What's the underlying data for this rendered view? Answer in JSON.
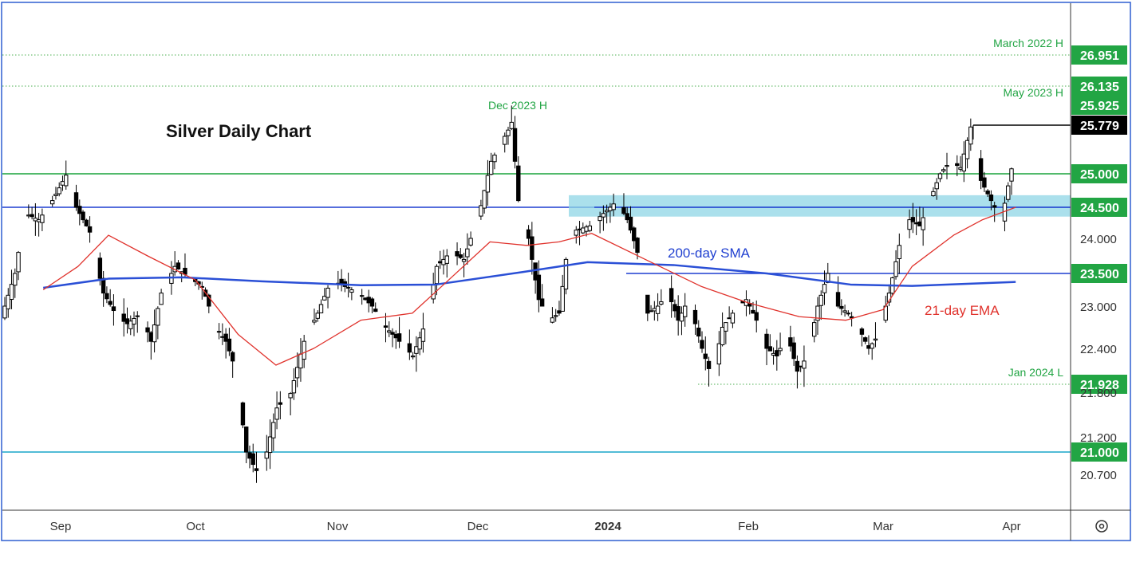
{
  "chart_data": {
    "type": "candlestick",
    "title": "Silver Daily Chart",
    "y_axis_ticks": [
      "26.951",
      "26.135",
      "25.925",
      "25.779",
      "25.000",
      "24.500",
      "24.000",
      "23.500",
      "23.000",
      "22.400",
      "21.928",
      "21.800",
      "21.200",
      "21.000",
      "20.700"
    ],
    "x_axis_ticks": [
      {
        "label": "Sep",
        "x": "2023-09-01"
      },
      {
        "label": "Oct",
        "x": "2023-10-02"
      },
      {
        "label": "Nov",
        "x": "2023-11-01"
      },
      {
        "label": "Dec",
        "x": "2023-12-01"
      },
      {
        "label": "2024",
        "x": "2024-01-02"
      },
      {
        "label": "Feb",
        "x": "2024-02-01"
      },
      {
        "label": "Mar",
        "x": "2024-03-01"
      },
      {
        "label": "Apr",
        "x": "2024-04-01"
      }
    ],
    "horizontal_levels": [
      {
        "price": 26.951,
        "label": "26.951",
        "box_color": "#22a544",
        "style": "dotted",
        "line_color": "#4caf50"
      },
      {
        "price": 26.135,
        "label": "26.135",
        "box_color": "#22a544",
        "style": "dotted",
        "line_color": "#4caf50"
      },
      {
        "price": 25.925,
        "label": "25.925",
        "box_color": "#22a544",
        "style": "none",
        "line_color": "#4caf50"
      },
      {
        "price": 25.779,
        "label": "25.779",
        "box_color": "#000000",
        "style": "solid-partial",
        "line_color": "#000000"
      },
      {
        "price": 25.0,
        "label": "25.000",
        "box_color": "#22a544",
        "style": "solid",
        "line_color": "#1aa33b"
      },
      {
        "price": 24.5,
        "label": "24.500",
        "box_color": "#22a544",
        "style": "solid",
        "line_color": "#1f3fd0"
      },
      {
        "price": 23.5,
        "label": "23.500",
        "box_color": "#22a544",
        "style": "solid-partial",
        "line_color": "#1f3fd0"
      },
      {
        "price": 21.928,
        "label": "21.928",
        "box_color": "#22a544",
        "style": "dotted-partial",
        "line_color": "#4caf50"
      },
      {
        "price": 21.0,
        "label": "21.000",
        "box_color": "#22a544",
        "style": "solid",
        "line_color": "#1aa5c8"
      }
    ],
    "support_zone": {
      "low": 24.35,
      "high": 24.68,
      "color": "#8fd6e6"
    },
    "annotations": [
      {
        "text": "March 2022 H",
        "color": "#22a544"
      },
      {
        "text": "May 2023 H",
        "color": "#22a544"
      },
      {
        "text": "Dec 2023 H",
        "color": "#22a544"
      },
      {
        "text": "Jan 2024 L",
        "color": "#22a544"
      },
      {
        "text": "200-day SMA",
        "color": "#1f3fd0"
      },
      {
        "text": "21-day EMA",
        "color": "#e0322c"
      }
    ],
    "candles_summary": {
      "start_close": 23.0,
      "sep_high": 24.98,
      "oct_low": 20.69,
      "dec_high": 25.92,
      "jan_low": 21.93,
      "last_close": 25.08
    },
    "sma_200": [
      {
        "x": "2023-08-28",
        "y": 23.28
      },
      {
        "x": "2023-09-12",
        "y": 23.42
      },
      {
        "x": "2023-09-29",
        "y": 23.44
      },
      {
        "x": "2023-10-16",
        "y": 23.38
      },
      {
        "x": "2023-11-06",
        "y": 23.32
      },
      {
        "x": "2023-11-22",
        "y": 23.33
      },
      {
        "x": "2023-12-12",
        "y": 23.52
      },
      {
        "x": "2023-12-28",
        "y": 23.66
      },
      {
        "x": "2024-01-16",
        "y": 23.62
      },
      {
        "x": "2024-02-05",
        "y": 23.5
      },
      {
        "x": "2024-02-23",
        "y": 23.33
      },
      {
        "x": "2024-03-08",
        "y": 23.31
      },
      {
        "x": "2024-04-02",
        "y": 23.37
      }
    ],
    "ema_21": [
      {
        "x": "2023-08-28",
        "y": 23.25
      },
      {
        "x": "2023-09-05",
        "y": 23.6
      },
      {
        "x": "2023-09-12",
        "y": 24.05
      },
      {
        "x": "2023-09-21",
        "y": 23.75
      },
      {
        "x": "2023-10-02",
        "y": 23.4
      },
      {
        "x": "2023-10-11",
        "y": 22.6
      },
      {
        "x": "2023-10-19",
        "y": 22.18
      },
      {
        "x": "2023-10-27",
        "y": 22.4
      },
      {
        "x": "2023-11-06",
        "y": 22.8
      },
      {
        "x": "2023-11-17",
        "y": 22.9
      },
      {
        "x": "2023-11-24",
        "y": 23.35
      },
      {
        "x": "2023-12-04",
        "y": 23.95
      },
      {
        "x": "2023-12-13",
        "y": 23.9
      },
      {
        "x": "2023-12-21",
        "y": 23.95
      },
      {
        "x": "2023-12-29",
        "y": 24.08
      },
      {
        "x": "2024-01-10",
        "y": 23.7
      },
      {
        "x": "2024-01-22",
        "y": 23.3
      },
      {
        "x": "2024-02-01",
        "y": 23.05
      },
      {
        "x": "2024-02-12",
        "y": 22.85
      },
      {
        "x": "2024-02-22",
        "y": 22.8
      },
      {
        "x": "2024-03-01",
        "y": 22.95
      },
      {
        "x": "2024-03-08",
        "y": 23.6
      },
      {
        "x": "2024-03-18",
        "y": 24.05
      },
      {
        "x": "2024-03-25",
        "y": 24.3
      },
      {
        "x": "2024-04-02",
        "y": 24.5
      }
    ]
  }
}
